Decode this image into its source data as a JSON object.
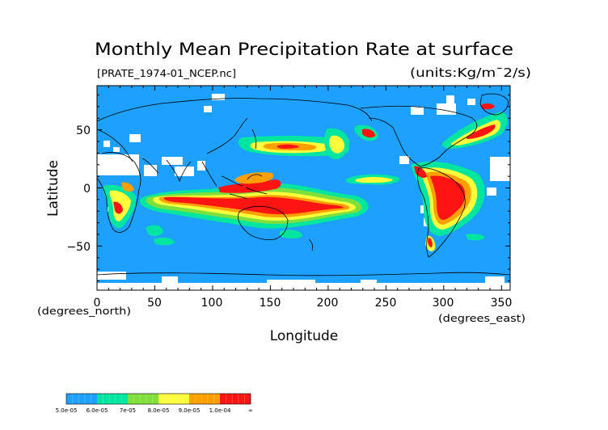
{
  "title": "Monthly Mean Precipitation Rate at surface",
  "file_label": "[PRATE_1974-01_NCEP.nc]",
  "units_label": "(units:Kg/m¯2/s)",
  "axes": {
    "xlabel": "Longitude",
    "ylabel": "Latitude",
    "x_unit": "(degrees_east)",
    "y_unit": "(degrees_north)",
    "x_ticks": [
      "0",
      "50",
      "100",
      "150",
      "200",
      "250",
      "300",
      "350"
    ],
    "y_ticks": [
      "50",
      "0",
      "−50"
    ],
    "xlim": [
      0,
      357.5
    ],
    "ylim": [
      -88,
      88
    ]
  },
  "colorbar": {
    "labels": [
      "5.0e-05",
      "6.0e-05",
      "7e-05",
      "8.0e-05",
      "9.0e-05",
      "1.0e-04",
      "∞"
    ],
    "colors": [
      "#1ea0ff",
      "#00e6a0",
      "#7fe03c",
      "#ffff3c",
      "#ffa000",
      "#ff1414"
    ]
  },
  "map_colors": {
    "base": "#1ea0ff",
    "band1": "#00e6a0",
    "band2": "#7fe03c",
    "band3": "#ffff3c",
    "band4": "#ffa000",
    "band5": "#ff1414",
    "missing": "#ffffff",
    "coast": "#000000"
  }
}
